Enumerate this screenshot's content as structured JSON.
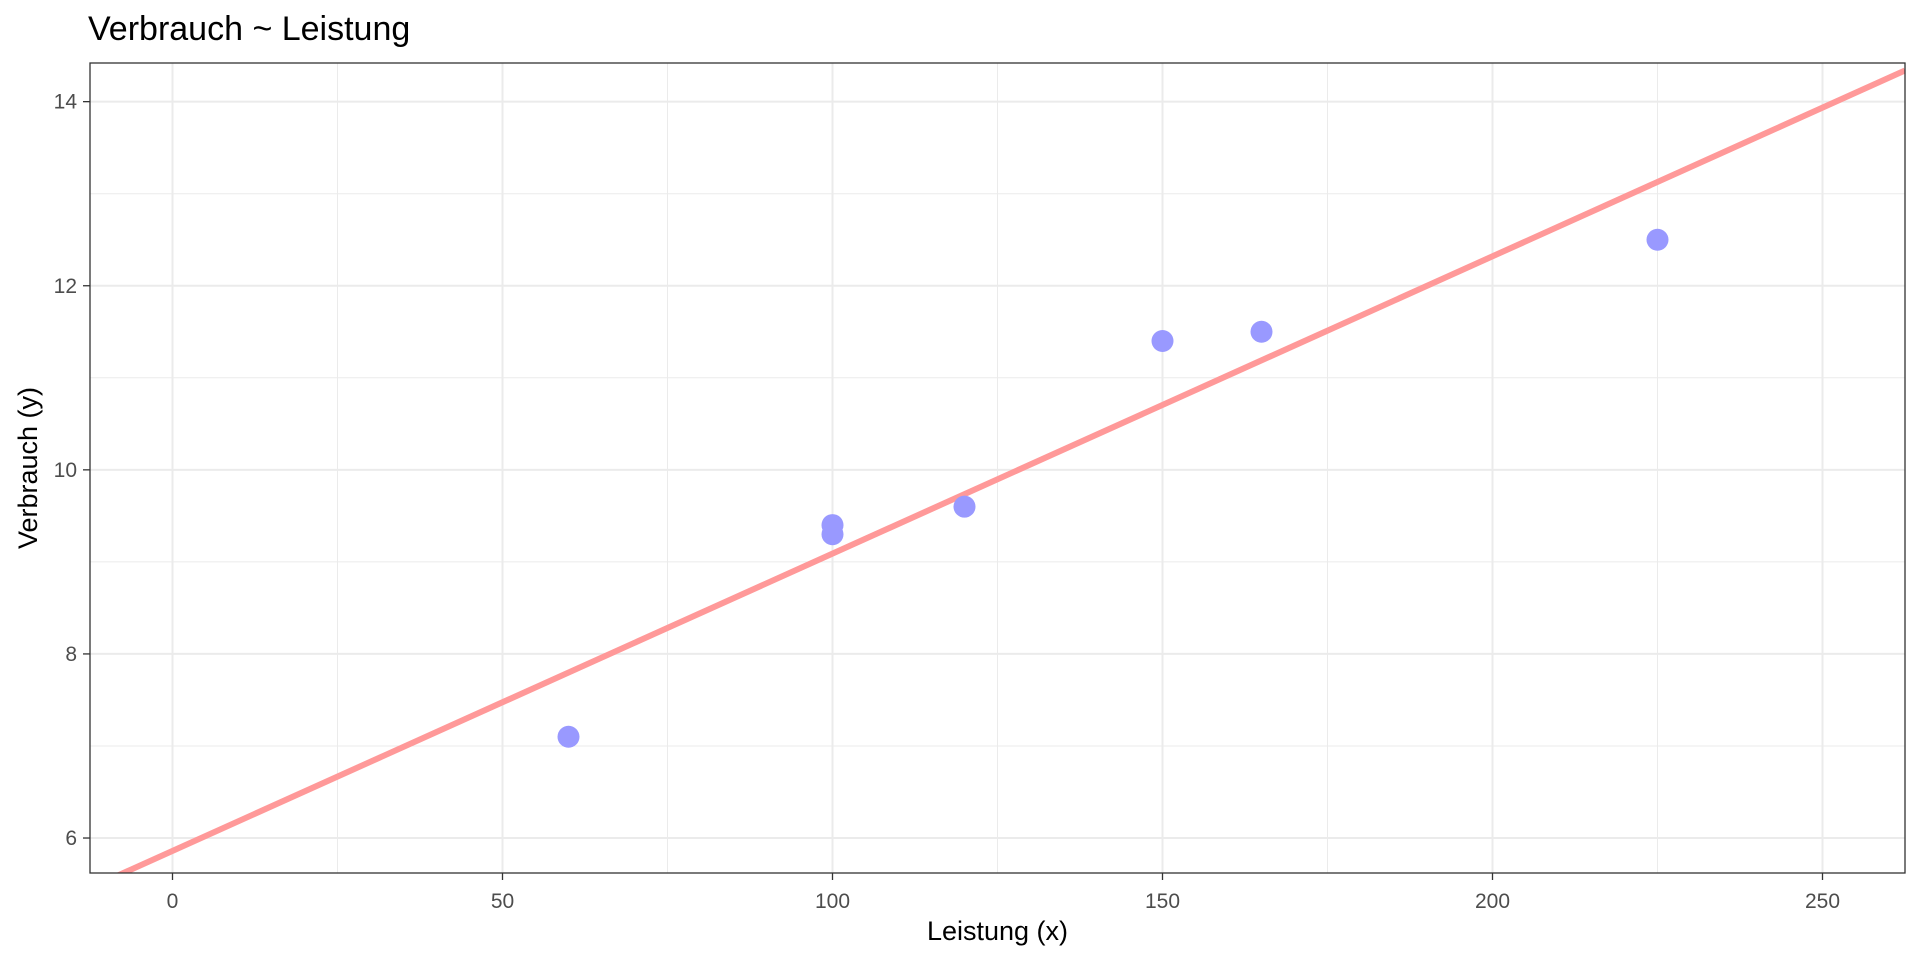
{
  "chart_data": {
    "type": "scatter",
    "title": "Verbrauch ~ Leistung",
    "xlabel": "Leistung (x)",
    "ylabel": "Verbrauch (y)",
    "xlim": [
      -12.5,
      262.5
    ],
    "ylim": [
      5.62,
      14.42
    ],
    "x_ticks": [
      0,
      50,
      100,
      150,
      200,
      250
    ],
    "y_ticks": [
      6,
      8,
      10,
      12,
      14
    ],
    "x_tick_labels": [
      "0",
      "50",
      "100",
      "150",
      "200",
      "250"
    ],
    "y_tick_labels": [
      "6",
      "8",
      "10",
      "12",
      "14"
    ],
    "x_minor_ticks": [
      25,
      75,
      125,
      175,
      225
    ],
    "y_minor_ticks": [
      7,
      9,
      11,
      13
    ],
    "grid": true,
    "points": [
      {
        "x": 60,
        "y": 7.1
      },
      {
        "x": 100,
        "y": 9.3
      },
      {
        "x": 100,
        "y": 9.4
      },
      {
        "x": 120,
        "y": 9.6
      },
      {
        "x": 150,
        "y": 11.4
      },
      {
        "x": 165,
        "y": 11.5
      },
      {
        "x": 225,
        "y": 12.5
      }
    ],
    "regression_line": {
      "intercept": 5.86,
      "slope": 0.0323
    },
    "colors": {
      "points": "#9999ff",
      "line": "#ff9999",
      "grid": "#ebebeb",
      "panel_border": "#333333",
      "tick_label": "#4d4d4d"
    }
  }
}
